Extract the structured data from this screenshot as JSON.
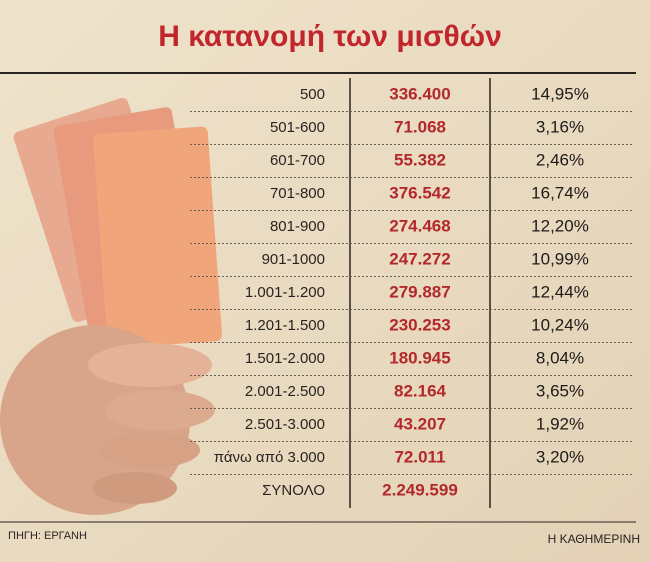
{
  "header": {
    "title": "Η κατανομή των μισθών"
  },
  "table": {
    "rows": [
      [
        "500",
        "336.400",
        "14,95%"
      ],
      [
        "501-600",
        "71.068",
        "3,16%"
      ],
      [
        "601-700",
        "55.382",
        "2,46%"
      ],
      [
        "701-800",
        "376.542",
        "16,74%"
      ],
      [
        "801-900",
        "274.468",
        "12,20%"
      ],
      [
        "901-1000",
        "247.272",
        "10,99%"
      ],
      [
        "1.001-1.200",
        "279.887",
        "12,44%"
      ],
      [
        "1.201-1.500",
        "230.253",
        "10,24%"
      ],
      [
        "1.501-2.000",
        "180.945",
        "8,04%"
      ],
      [
        "2.001-2.500",
        "82.164",
        "3,65%"
      ],
      [
        "2.501-3.000",
        "43.207",
        "1,92%"
      ],
      [
        "πάνω από 3.000",
        "72.011",
        "3,20%"
      ]
    ],
    "total": {
      "label": "ΣΥΝΟΛΟ",
      "value": "2.249.599"
    }
  },
  "footer": {
    "source": "ΠΗΓΗ: ΕΡΓΑΝΗ",
    "publisher": "Η ΚΑΘΗΜΕΡΙΝΗ"
  }
}
